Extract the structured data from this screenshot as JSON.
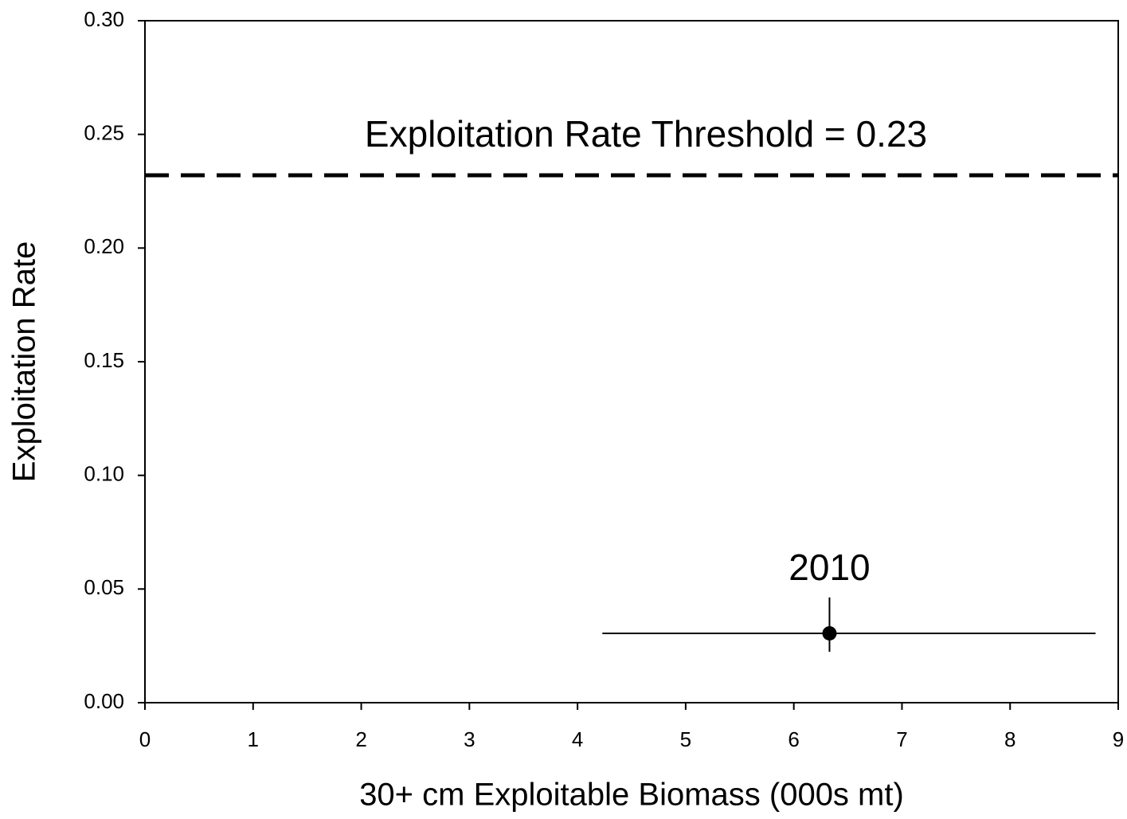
{
  "chart_data": {
    "type": "scatter",
    "xlabel": "30+ cm Exploitable Biomass (000s mt)",
    "ylabel": "Exploitation Rate",
    "x": [
      6.33
    ],
    "xerr": [
      [
        2.1,
        2.46
      ]
    ],
    "series": [
      {
        "values": [
          0.0305
        ],
        "yerr": [
          [
            0.0081,
            0.0158
          ]
        ],
        "color": "#000000"
      }
    ],
    "point_labels": [
      "2010"
    ],
    "threshold": {
      "value": 0.232,
      "label": "Exploitation Rate Threshold = 0.23"
    },
    "xlim": [
      0,
      9
    ],
    "xticks": [
      0,
      1,
      2,
      3,
      4,
      5,
      6,
      7,
      8,
      9
    ],
    "ylim": [
      0,
      0.3
    ],
    "yticks": [
      {
        "value": 0,
        "label": "0.00"
      },
      0.05,
      {
        "value": 0.1,
        "label": "0.10"
      },
      0.15,
      {
        "value": 0.2,
        "label": "0.20"
      },
      0.25,
      {
        "value": 0.3,
        "label": "0.30"
      }
    ]
  }
}
